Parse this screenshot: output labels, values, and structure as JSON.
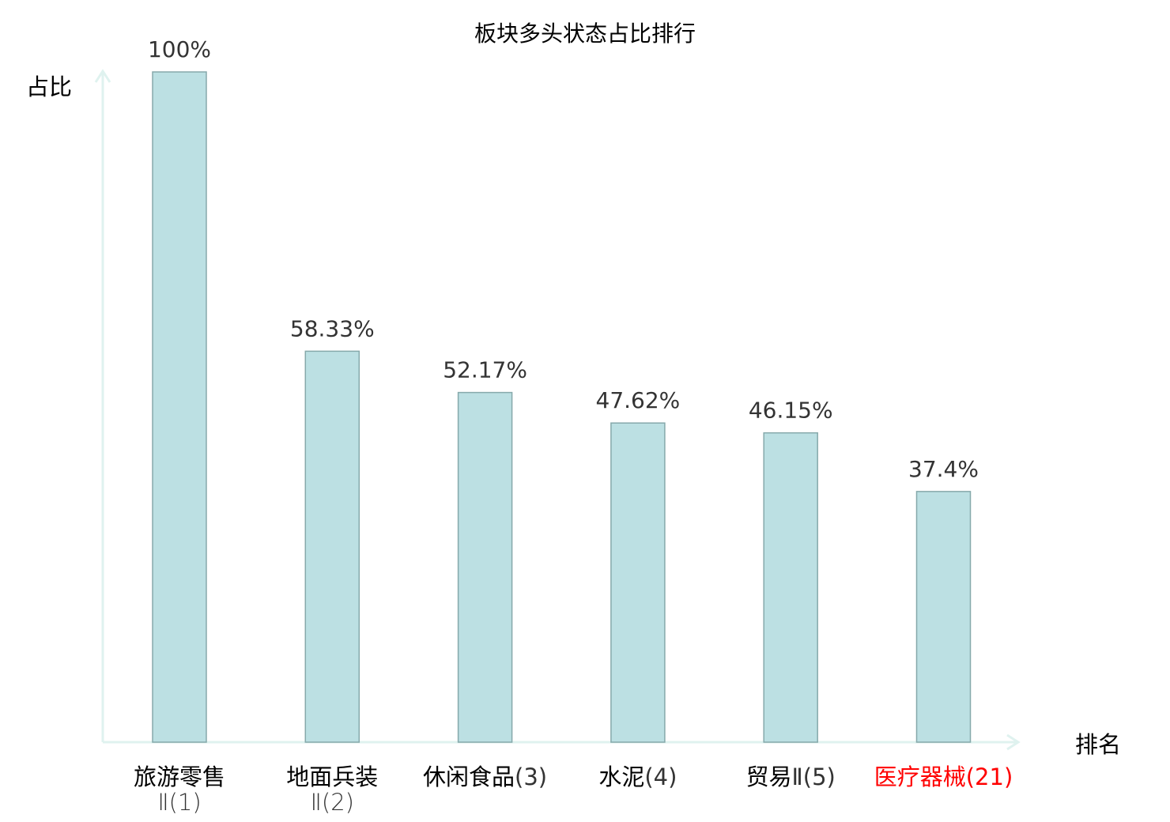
{
  "chart_data": {
    "type": "bar",
    "title": "板块多头状态占比排行",
    "xlabel": "排名",
    "ylabel": "占比",
    "ylim": [
      0,
      100
    ],
    "grid": false,
    "categories": [
      {
        "name": "旅游零售",
        "rank": "Ⅱ(1)",
        "highlight": false
      },
      {
        "name": "地面兵装",
        "rank": "Ⅱ(2)",
        "highlight": false
      },
      {
        "name": "休闲食品",
        "rank": "(3)",
        "highlight": false
      },
      {
        "name": "水泥",
        "rank": "(4)",
        "highlight": false
      },
      {
        "name": "贸易",
        "rank": "Ⅱ(5)",
        "highlight": false
      },
      {
        "name": "医疗器械",
        "rank": "(21)",
        "highlight": true
      }
    ],
    "values": [
      100,
      58.33,
      52.17,
      47.62,
      46.15,
      37.4
    ],
    "data_labels": [
      "100%",
      "58.33%",
      "52.17%",
      "47.62%",
      "46.15%",
      "37.4%"
    ],
    "colors": {
      "bar_fill": "#bce0e3",
      "bar_stroke": "#86a9ab",
      "axis": "#dff2ef",
      "highlight": "#ff0000",
      "label": "#333333"
    }
  }
}
